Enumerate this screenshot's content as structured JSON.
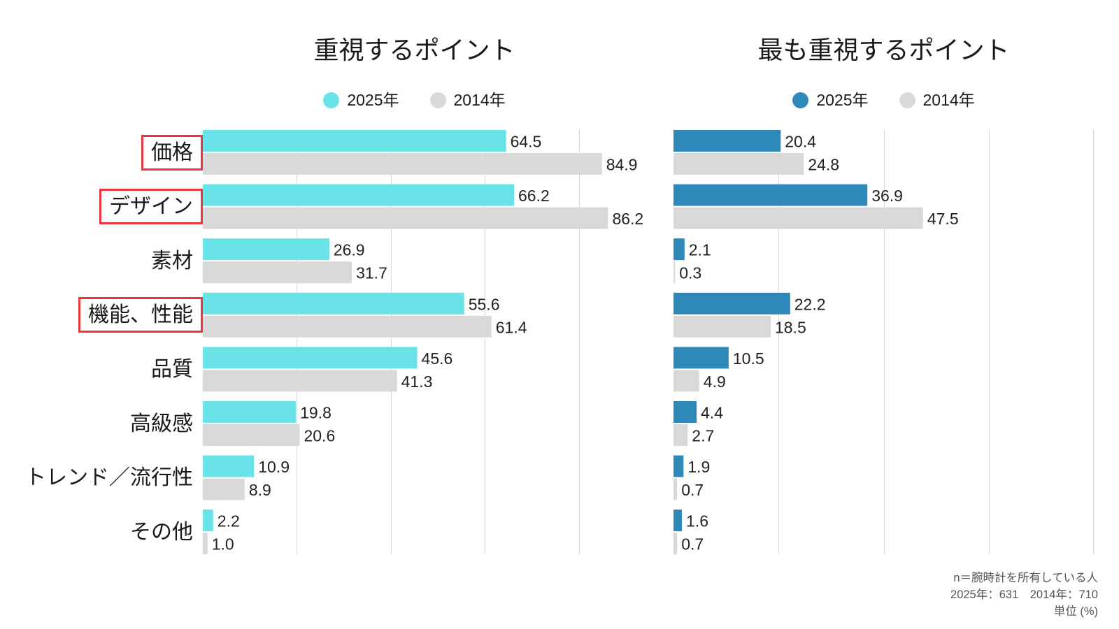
{
  "chart_data": {
    "type": "bar",
    "orientation": "horizontal",
    "categories": [
      "価格",
      "デザイン",
      "素材",
      "機能、性能",
      "品質",
      "高級感",
      "トレンド／流行性",
      "その他"
    ],
    "highlighted": [
      true,
      true,
      false,
      true,
      false,
      false,
      false,
      false
    ],
    "highlight_color": "#e8383d",
    "panels": [
      {
        "title": "重視するポイント",
        "xlim": [
          0,
          90
        ],
        "grid": true,
        "grid_step": 20,
        "legend_position": "top",
        "series": [
          {
            "name": "2025年",
            "color": "#69e3e8",
            "values": [
              64.5,
              66.2,
              26.9,
              55.6,
              45.6,
              19.8,
              10.9,
              2.2
            ]
          },
          {
            "name": "2014年",
            "color": "#d9d9d9",
            "values": [
              84.9,
              86.2,
              31.7,
              61.4,
              41.3,
              20.6,
              8.9,
              1.0
            ]
          }
        ]
      },
      {
        "title": "最も重視するポイント",
        "xlim": [
          0,
          80
        ],
        "grid": true,
        "grid_step": 20,
        "legend_position": "top",
        "series": [
          {
            "name": "2025年",
            "color": "#2e89ba",
            "values": [
              20.4,
              36.9,
              2.1,
              22.2,
              10.5,
              4.4,
              1.9,
              1.6
            ]
          },
          {
            "name": "2014年",
            "color": "#d9d9d9",
            "values": [
              24.8,
              47.5,
              0.3,
              18.5,
              4.9,
              2.7,
              0.7,
              0.7
            ]
          }
        ]
      }
    ]
  },
  "footnote": {
    "sample": "n＝腕時計を所有している人",
    "sizes": "2025年：631　2014年：710",
    "unit": "単位 (%)"
  }
}
